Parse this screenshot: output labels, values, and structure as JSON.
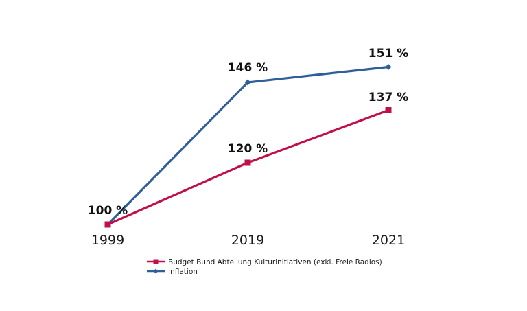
{
  "chart_data": {
    "type": "line",
    "title": "",
    "xlabel": "",
    "ylabel": "",
    "categories": [
      "1999",
      "2019",
      "2021"
    ],
    "ylim": [
      100,
      151
    ],
    "grid": false,
    "legend_position": "bottom-center",
    "series": [
      {
        "name": "Budget Bund Abteilung Kulturinitiativen (exkl. Freie Radios)",
        "values": [
          100,
          120,
          137
        ],
        "labels": [
          "100 %",
          "120 %",
          "137 %"
        ],
        "color": "#c0104a",
        "marker": "square"
      },
      {
        "name": "Inflation",
        "values": [
          100,
          146,
          151
        ],
        "labels": [
          "",
          "146 %",
          "151 %"
        ],
        "color": "#2f5f99",
        "marker": "diamond"
      }
    ]
  }
}
